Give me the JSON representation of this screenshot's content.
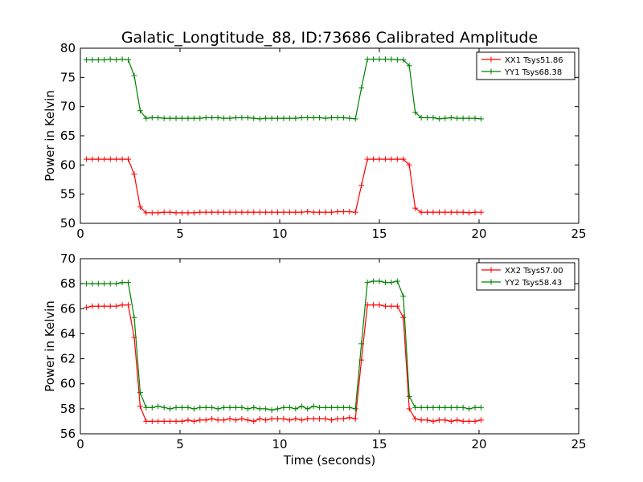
{
  "figure": {
    "title": "Galatic_Longtitude_88, ID:73686 Calibrated Amplitude"
  },
  "chart_data": [
    {
      "type": "line",
      "title": "Galatic_Longtitude_88, ID:73686 Calibrated Amplitude",
      "xlabel": "",
      "ylabel": "Power in Kelvin",
      "xlim": [
        0,
        25
      ],
      "ylim": [
        50,
        80
      ],
      "xticks": [
        "0",
        "5",
        "10",
        "15",
        "20",
        "25"
      ],
      "yticks": [
        "50",
        "55",
        "60",
        "65",
        "70",
        "75",
        "80"
      ],
      "legend_position": "top-right",
      "x": [
        0.3,
        0.6,
        0.9,
        1.2,
        1.5,
        1.8,
        2.1,
        2.4,
        2.7,
        3.0,
        3.3,
        3.6,
        3.9,
        4.2,
        4.5,
        4.8,
        5.1,
        5.4,
        5.7,
        6.0,
        6.3,
        6.6,
        6.9,
        7.2,
        7.5,
        7.8,
        8.1,
        8.4,
        8.7,
        9.0,
        9.3,
        9.6,
        9.9,
        10.2,
        10.5,
        10.8,
        11.1,
        11.4,
        11.7,
        12.0,
        12.3,
        12.6,
        12.9,
        13.2,
        13.5,
        13.8,
        14.1,
        14.4,
        14.7,
        15.0,
        15.3,
        15.6,
        15.9,
        16.2,
        16.5,
        16.8,
        17.1,
        17.4,
        17.7,
        18.0,
        18.3,
        18.6,
        18.9,
        19.2,
        19.5,
        19.8,
        20.1
      ],
      "series": [
        {
          "name": "XX1 Tsys51.86",
          "color": "#ff0000",
          "values": [
            61.0,
            61.0,
            61.0,
            61.0,
            61.0,
            61.0,
            61.0,
            61.0,
            58.4,
            52.8,
            51.8,
            51.8,
            51.8,
            51.9,
            51.9,
            51.8,
            51.8,
            51.8,
            51.8,
            51.9,
            51.9,
            51.9,
            51.9,
            51.9,
            51.9,
            51.9,
            51.9,
            51.9,
            51.9,
            51.9,
            51.9,
            51.9,
            51.9,
            51.9,
            51.9,
            51.9,
            51.9,
            52.0,
            51.9,
            51.9,
            51.9,
            51.9,
            52.0,
            52.0,
            52.0,
            51.9,
            56.5,
            61.0,
            61.0,
            61.0,
            61.0,
            61.0,
            61.0,
            61.0,
            60.0,
            52.6,
            51.9,
            51.9,
            51.9,
            51.9,
            51.9,
            51.9,
            51.9,
            51.9,
            51.8,
            51.9,
            51.9
          ]
        },
        {
          "name": "YY1 Tsys68.38",
          "color": "#008000",
          "values": [
            78.0,
            78.0,
            78.0,
            78.0,
            78.1,
            78.0,
            78.1,
            78.0,
            75.3,
            69.3,
            68.0,
            68.1,
            68.1,
            68.0,
            68.0,
            68.0,
            68.0,
            68.0,
            68.0,
            68.0,
            68.1,
            68.1,
            68.1,
            68.0,
            68.0,
            68.1,
            68.1,
            68.1,
            68.0,
            67.9,
            68.0,
            68.0,
            68.0,
            68.0,
            68.0,
            68.0,
            68.1,
            68.1,
            68.1,
            68.1,
            68.0,
            68.1,
            68.1,
            68.1,
            68.0,
            67.9,
            73.2,
            78.1,
            78.1,
            78.1,
            78.1,
            78.1,
            78.0,
            78.0,
            77.0,
            69.0,
            68.1,
            68.1,
            68.1,
            67.9,
            68.0,
            68.1,
            68.0,
            68.0,
            68.0,
            68.0,
            67.9
          ]
        }
      ]
    },
    {
      "type": "line",
      "title": "",
      "xlabel": "Time (seconds)",
      "ylabel": "Power in Kelvin",
      "xlim": [
        0,
        25
      ],
      "ylim": [
        56,
        70
      ],
      "xticks": [
        "0",
        "5",
        "10",
        "15",
        "20",
        "25"
      ],
      "yticks": [
        "56",
        "58",
        "60",
        "62",
        "64",
        "66",
        "68",
        "70"
      ],
      "legend_position": "top-right",
      "x": [
        0.3,
        0.6,
        0.9,
        1.2,
        1.5,
        1.8,
        2.1,
        2.4,
        2.7,
        3.0,
        3.3,
        3.6,
        3.9,
        4.2,
        4.5,
        4.8,
        5.1,
        5.4,
        5.7,
        6.0,
        6.3,
        6.6,
        6.9,
        7.2,
        7.5,
        7.8,
        8.1,
        8.4,
        8.7,
        9.0,
        9.3,
        9.6,
        9.9,
        10.2,
        10.5,
        10.8,
        11.1,
        11.4,
        11.7,
        12.0,
        12.3,
        12.6,
        12.9,
        13.2,
        13.5,
        13.8,
        14.1,
        14.4,
        14.7,
        15.0,
        15.3,
        15.6,
        15.9,
        16.2,
        16.5,
        16.8,
        17.1,
        17.4,
        17.7,
        18.0,
        18.3,
        18.6,
        18.9,
        19.2,
        19.5,
        19.8,
        20.1
      ],
      "series": [
        {
          "name": "XX2 Tsys57.00",
          "color": "#ff0000",
          "values": [
            66.1,
            66.2,
            66.2,
            66.2,
            66.2,
            66.2,
            66.3,
            66.3,
            63.7,
            58.2,
            57.0,
            57.0,
            57.0,
            57.0,
            57.0,
            57.0,
            57.0,
            57.1,
            57.0,
            57.1,
            57.1,
            57.2,
            57.1,
            57.1,
            57.2,
            57.1,
            57.2,
            57.1,
            57.0,
            57.2,
            57.1,
            57.2,
            57.2,
            57.2,
            57.1,
            57.2,
            57.1,
            57.2,
            57.2,
            57.2,
            57.2,
            57.1,
            57.2,
            57.2,
            57.3,
            57.2,
            61.9,
            66.3,
            66.3,
            66.3,
            66.2,
            66.2,
            66.2,
            65.3,
            58.0,
            57.2,
            57.1,
            57.1,
            57.0,
            57.1,
            57.1,
            57.0,
            57.1,
            57.0,
            57.0,
            57.0,
            57.1
          ]
        },
        {
          "name": "YY2 Tsys58.43",
          "color": "#008000",
          "values": [
            68.0,
            68.0,
            68.0,
            68.0,
            68.0,
            68.0,
            68.1,
            68.1,
            65.3,
            59.3,
            58.1,
            58.1,
            58.2,
            58.1,
            58.0,
            58.1,
            58.1,
            58.1,
            58.0,
            58.1,
            58.1,
            58.1,
            58.0,
            58.1,
            58.1,
            58.1,
            58.1,
            58.0,
            58.1,
            58.0,
            58.0,
            57.9,
            58.0,
            58.1,
            58.1,
            58.0,
            58.2,
            58.0,
            58.2,
            58.1,
            58.1,
            58.1,
            58.1,
            58.1,
            58.1,
            58.0,
            63.2,
            68.1,
            68.2,
            68.2,
            68.1,
            68.1,
            68.2,
            67.0,
            59.0,
            58.1,
            58.1,
            58.1,
            58.1,
            58.1,
            58.1,
            58.1,
            58.1,
            58.1,
            58.0,
            58.1,
            58.1
          ]
        }
      ]
    }
  ]
}
